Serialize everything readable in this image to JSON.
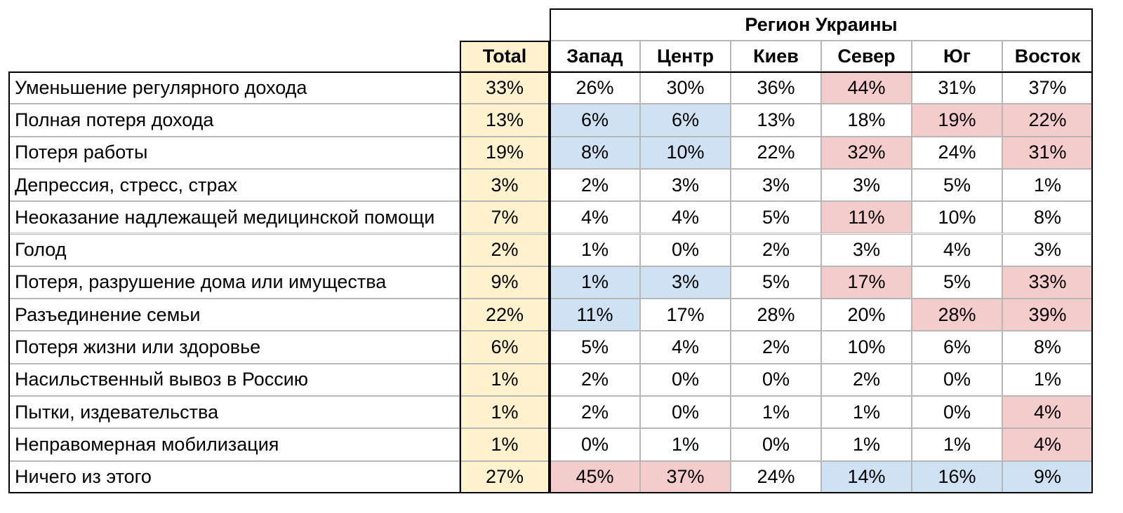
{
  "chart_data": {
    "type": "table",
    "group_header": "Регион Украины",
    "total_header": "Total",
    "columns": [
      "Запад",
      "Центр",
      "Киев",
      "Север",
      "Юг",
      "Восток"
    ],
    "rows": [
      {
        "label": "Уменьшение регулярного дохода",
        "total": "33%",
        "values": [
          "26%",
          "30%",
          "36%",
          "44%",
          "31%",
          "37%"
        ],
        "highlight": [
          "",
          "",
          "",
          "hi",
          "",
          ""
        ]
      },
      {
        "label": "Полная потеря дохода",
        "total": "13%",
        "values": [
          "6%",
          "6%",
          "13%",
          "18%",
          "19%",
          "22%"
        ],
        "highlight": [
          "lo",
          "lo",
          "",
          "",
          "hi",
          "hi"
        ]
      },
      {
        "label": "Потеря работы",
        "total": "19%",
        "values": [
          "8%",
          "10%",
          "22%",
          "32%",
          "24%",
          "31%"
        ],
        "highlight": [
          "lo",
          "lo",
          "",
          "hi",
          "",
          "hi"
        ]
      },
      {
        "label": "Депрессия, стресс, страх",
        "total": "3%",
        "values": [
          "2%",
          "3%",
          "3%",
          "3%",
          "5%",
          "1%"
        ],
        "highlight": [
          "",
          "",
          "",
          "",
          "",
          ""
        ]
      },
      {
        "label": "Неоказание надлежащей медицинской помощи",
        "total": "7%",
        "values": [
          "4%",
          "4%",
          "5%",
          "11%",
          "10%",
          "8%"
        ],
        "highlight": [
          "",
          "",
          "",
          "hi",
          "",
          ""
        ]
      },
      {
        "label": "Голод",
        "total": "2%",
        "values": [
          "1%",
          "0%",
          "2%",
          "3%",
          "4%",
          "3%"
        ],
        "highlight": [
          "",
          "",
          "",
          "",
          "",
          ""
        ]
      },
      {
        "label": "Потеря, разрушение дома или имущества",
        "total": "9%",
        "values": [
          "1%",
          "3%",
          "5%",
          "17%",
          "5%",
          "33%"
        ],
        "highlight": [
          "lo",
          "lo",
          "",
          "hi",
          "",
          "hi"
        ]
      },
      {
        "label": "Разъединение семьи",
        "total": "22%",
        "values": [
          "11%",
          "17%",
          "28%",
          "20%",
          "28%",
          "39%"
        ],
        "highlight": [
          "lo",
          "",
          "",
          "",
          "hi",
          "hi"
        ]
      },
      {
        "label": "Потеря жизни или здоровье",
        "total": "6%",
        "values": [
          "5%",
          "4%",
          "2%",
          "10%",
          "6%",
          "8%"
        ],
        "highlight": [
          "",
          "",
          "",
          "",
          "",
          ""
        ]
      },
      {
        "label": "Насильственный вывоз в Россию",
        "total": "1%",
        "values": [
          "2%",
          "0%",
          "0%",
          "2%",
          "0%",
          "1%"
        ],
        "highlight": [
          "",
          "",
          "",
          "",
          "",
          ""
        ]
      },
      {
        "label": "Пытки, издевательства",
        "total": "1%",
        "values": [
          "2%",
          "0%",
          "1%",
          "1%",
          "0%",
          "4%"
        ],
        "highlight": [
          "",
          "",
          "",
          "",
          "",
          "hi"
        ]
      },
      {
        "label": "Неправомерная мобилизация",
        "total": "1%",
        "values": [
          "0%",
          "1%",
          "0%",
          "1%",
          "1%",
          "4%"
        ],
        "highlight": [
          "",
          "",
          "",
          "",
          "",
          "hi"
        ]
      },
      {
        "label": "Ничего из этого",
        "total": "27%",
        "values": [
          "45%",
          "37%",
          "24%",
          "14%",
          "16%",
          "9%"
        ],
        "highlight": [
          "hi",
          "hi",
          "",
          "lo",
          "lo",
          "lo"
        ]
      }
    ],
    "colors": {
      "total": "#fff2cc",
      "high": "#f4cccc",
      "low": "#cfe2f3"
    }
  }
}
